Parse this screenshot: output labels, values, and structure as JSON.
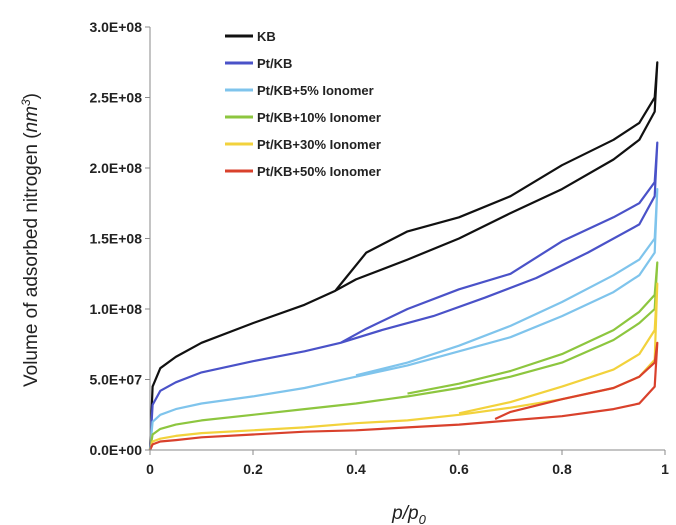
{
  "chart_data": {
    "type": "line",
    "xlabel": {
      "base": "p/p",
      "sub": "0"
    },
    "ylabel": {
      "text": "Volume of adsorbed nitrogen (",
      "unit": "nm",
      "sup": "3",
      "close": ")"
    },
    "xlim": [
      0,
      1
    ],
    "ylim": [
      0,
      300000000
    ],
    "xticks": [
      0,
      0.2,
      0.4,
      0.6,
      0.8,
      1
    ],
    "xtick_labels": [
      "0",
      "0.2",
      "0.4",
      "0.6",
      "0.8",
      "1"
    ],
    "yticks": [
      0,
      50000000,
      100000000,
      150000000,
      200000000,
      250000000,
      300000000
    ],
    "ytick_labels": [
      "0.0E+00",
      "5.0E+07",
      "1.0E+08",
      "1.5E+08",
      "2.0E+08",
      "2.5E+08",
      "3.0E+08"
    ],
    "grid": false,
    "legend_position": "top-left",
    "series": [
      {
        "name": "KB",
        "color": "#111111",
        "adsorption": [
          [
            0,
            0
          ],
          [
            0.005,
            45000000
          ],
          [
            0.02,
            58000000
          ],
          [
            0.05,
            66000000
          ],
          [
            0.1,
            76000000
          ],
          [
            0.2,
            90000000
          ],
          [
            0.3,
            103000000
          ],
          [
            0.36,
            113000000
          ],
          [
            0.4,
            121000000
          ],
          [
            0.5,
            135000000
          ],
          [
            0.6,
            150000000
          ],
          [
            0.7,
            168000000
          ],
          [
            0.8,
            185000000
          ],
          [
            0.9,
            206000000
          ],
          [
            0.95,
            220000000
          ],
          [
            0.98,
            240000000
          ],
          [
            0.985,
            275000000
          ]
        ],
        "desorption": [
          [
            0.985,
            275000000
          ],
          [
            0.98,
            250000000
          ],
          [
            0.95,
            232000000
          ],
          [
            0.9,
            220000000
          ],
          [
            0.8,
            202000000
          ],
          [
            0.7,
            180000000
          ],
          [
            0.6,
            165000000
          ],
          [
            0.5,
            155000000
          ],
          [
            0.42,
            140000000
          ],
          [
            0.38,
            122000000
          ],
          [
            0.36,
            113000000
          ]
        ]
      },
      {
        "name": "Pt/KB",
        "color": "#4a52c8",
        "adsorption": [
          [
            0,
            0
          ],
          [
            0.005,
            32000000
          ],
          [
            0.02,
            42000000
          ],
          [
            0.05,
            48000000
          ],
          [
            0.1,
            55000000
          ],
          [
            0.2,
            63000000
          ],
          [
            0.3,
            70000000
          ],
          [
            0.37,
            76000000
          ],
          [
            0.45,
            85000000
          ],
          [
            0.55,
            95000000
          ],
          [
            0.65,
            108000000
          ],
          [
            0.75,
            122000000
          ],
          [
            0.85,
            140000000
          ],
          [
            0.95,
            160000000
          ],
          [
            0.98,
            180000000
          ],
          [
            0.985,
            218000000
          ]
        ],
        "desorption": [
          [
            0.985,
            218000000
          ],
          [
            0.98,
            190000000
          ],
          [
            0.95,
            175000000
          ],
          [
            0.9,
            165000000
          ],
          [
            0.8,
            148000000
          ],
          [
            0.7,
            125000000
          ],
          [
            0.6,
            114000000
          ],
          [
            0.5,
            100000000
          ],
          [
            0.42,
            86000000
          ],
          [
            0.37,
            76000000
          ]
        ]
      },
      {
        "name": "Pt/KB+5% Ionomer",
        "color": "#7fc4ec",
        "adsorption": [
          [
            0,
            0
          ],
          [
            0.005,
            20000000
          ],
          [
            0.02,
            25000000
          ],
          [
            0.05,
            29000000
          ],
          [
            0.1,
            33000000
          ],
          [
            0.2,
            38000000
          ],
          [
            0.3,
            44000000
          ],
          [
            0.4,
            52000000
          ],
          [
            0.5,
            60000000
          ],
          [
            0.6,
            70000000
          ],
          [
            0.7,
            80000000
          ],
          [
            0.8,
            95000000
          ],
          [
            0.9,
            112000000
          ],
          [
            0.95,
            124000000
          ],
          [
            0.98,
            140000000
          ],
          [
            0.985,
            185000000
          ]
        ],
        "desorption": [
          [
            0.985,
            185000000
          ],
          [
            0.98,
            150000000
          ],
          [
            0.95,
            135000000
          ],
          [
            0.9,
            124000000
          ],
          [
            0.8,
            105000000
          ],
          [
            0.7,
            88000000
          ],
          [
            0.6,
            74000000
          ],
          [
            0.5,
            62000000
          ],
          [
            0.4,
            53000000
          ]
        ]
      },
      {
        "name": "Pt/KB+10% Ionomer",
        "color": "#8dc63f",
        "adsorption": [
          [
            0,
            0
          ],
          [
            0.005,
            11000000
          ],
          [
            0.02,
            15000000
          ],
          [
            0.05,
            18000000
          ],
          [
            0.1,
            21000000
          ],
          [
            0.2,
            25000000
          ],
          [
            0.3,
            29000000
          ],
          [
            0.4,
            33000000
          ],
          [
            0.5,
            38000000
          ],
          [
            0.6,
            44000000
          ],
          [
            0.7,
            52000000
          ],
          [
            0.8,
            62000000
          ],
          [
            0.9,
            78000000
          ],
          [
            0.95,
            90000000
          ],
          [
            0.98,
            100000000
          ],
          [
            0.985,
            133000000
          ]
        ],
        "desorption": [
          [
            0.985,
            133000000
          ],
          [
            0.98,
            110000000
          ],
          [
            0.95,
            98000000
          ],
          [
            0.9,
            85000000
          ],
          [
            0.8,
            68000000
          ],
          [
            0.7,
            56000000
          ],
          [
            0.6,
            47000000
          ],
          [
            0.5,
            40000000
          ]
        ]
      },
      {
        "name": "Pt/KB+30% Ionomer",
        "color": "#f2d23c",
        "adsorption": [
          [
            0,
            0
          ],
          [
            0.005,
            6000000
          ],
          [
            0.02,
            8000000
          ],
          [
            0.05,
            10000000
          ],
          [
            0.1,
            12000000
          ],
          [
            0.2,
            14000000
          ],
          [
            0.3,
            16000000
          ],
          [
            0.4,
            19000000
          ],
          [
            0.5,
            21000000
          ],
          [
            0.6,
            25000000
          ],
          [
            0.7,
            30000000
          ],
          [
            0.8,
            36000000
          ],
          [
            0.9,
            44000000
          ],
          [
            0.95,
            52000000
          ],
          [
            0.98,
            64000000
          ],
          [
            0.985,
            118000000
          ]
        ],
        "desorption": [
          [
            0.985,
            118000000
          ],
          [
            0.98,
            85000000
          ],
          [
            0.95,
            68000000
          ],
          [
            0.9,
            57000000
          ],
          [
            0.8,
            45000000
          ],
          [
            0.7,
            34000000
          ],
          [
            0.6,
            26000000
          ]
        ]
      },
      {
        "name": "Pt/KB+50% Ionomer",
        "color": "#d9412c",
        "adsorption": [
          [
            0,
            0
          ],
          [
            0.005,
            4000000
          ],
          [
            0.02,
            6000000
          ],
          [
            0.05,
            7000000
          ],
          [
            0.1,
            9000000
          ],
          [
            0.2,
            11000000
          ],
          [
            0.3,
            13000000
          ],
          [
            0.4,
            14000000
          ],
          [
            0.5,
            16000000
          ],
          [
            0.6,
            18000000
          ],
          [
            0.7,
            21000000
          ],
          [
            0.8,
            24000000
          ],
          [
            0.9,
            29000000
          ],
          [
            0.95,
            33000000
          ],
          [
            0.98,
            45000000
          ],
          [
            0.985,
            76000000
          ]
        ],
        "desorption": [
          [
            0.985,
            76000000
          ],
          [
            0.98,
            62000000
          ],
          [
            0.95,
            52000000
          ],
          [
            0.9,
            44000000
          ],
          [
            0.8,
            36000000
          ],
          [
            0.7,
            27000000
          ],
          [
            0.67,
            22000000
          ]
        ]
      }
    ]
  }
}
